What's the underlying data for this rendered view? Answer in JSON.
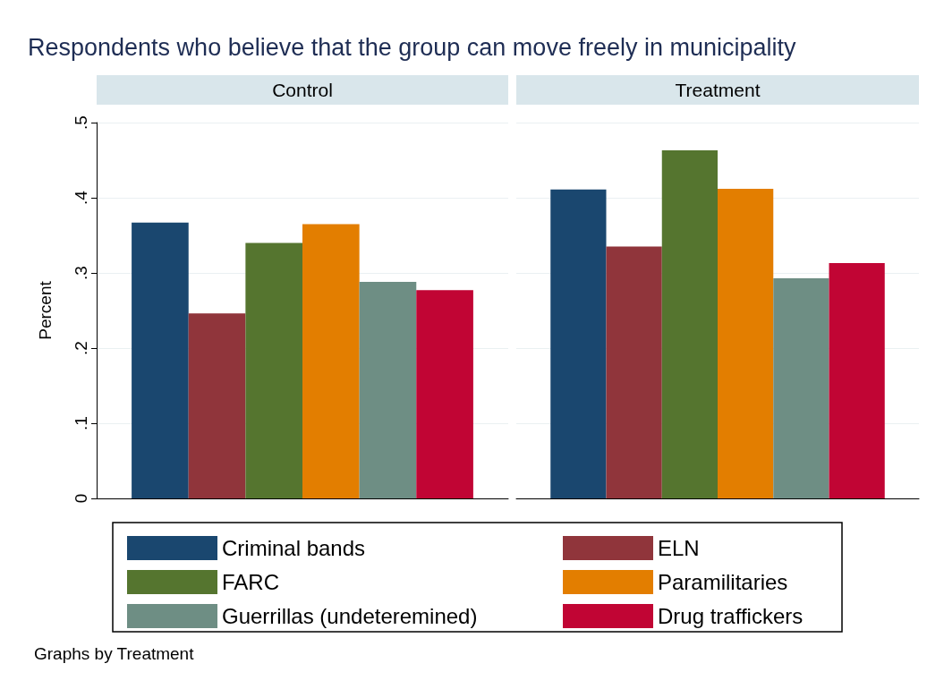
{
  "chart_data": {
    "type": "bar",
    "title": "Respondents who believe that the group can move freely in municipality",
    "ylabel": "Percent",
    "categories": [
      "Control",
      "Treatment"
    ],
    "series": [
      {
        "name": "Criminal bands",
        "color": "#1a476f",
        "values": [
          0.367,
          0.411
        ]
      },
      {
        "name": "ELN",
        "color": "#90353b",
        "values": [
          0.246,
          0.335
        ]
      },
      {
        "name": "FARC",
        "color": "#55752f",
        "values": [
          0.34,
          0.463
        ]
      },
      {
        "name": "Paramilitaries",
        "color": "#e37e00",
        "values": [
          0.365,
          0.412
        ]
      },
      {
        "name": "Guerrillas (undeteremined)",
        "color": "#6e8e84",
        "values": [
          0.288,
          0.293
        ]
      },
      {
        "name": "Drug traffickers",
        "color": "#c10534",
        "values": [
          0.277,
          0.313
        ]
      }
    ],
    "ylim": [
      0,
      0.5
    ],
    "yticks": [
      0,
      {
        "value": 0.1,
        "label": ".1"
      },
      {
        "value": 0.2,
        "label": ".2"
      },
      {
        "value": 0.3,
        "label": ".3"
      },
      {
        "value": 0.4,
        "label": ".4"
      },
      {
        "value": 0.5,
        "label": ".5"
      }
    ],
    "grid": "y",
    "legend": "bottom",
    "annotations": [
      "Graphs by Treatment"
    ]
  }
}
